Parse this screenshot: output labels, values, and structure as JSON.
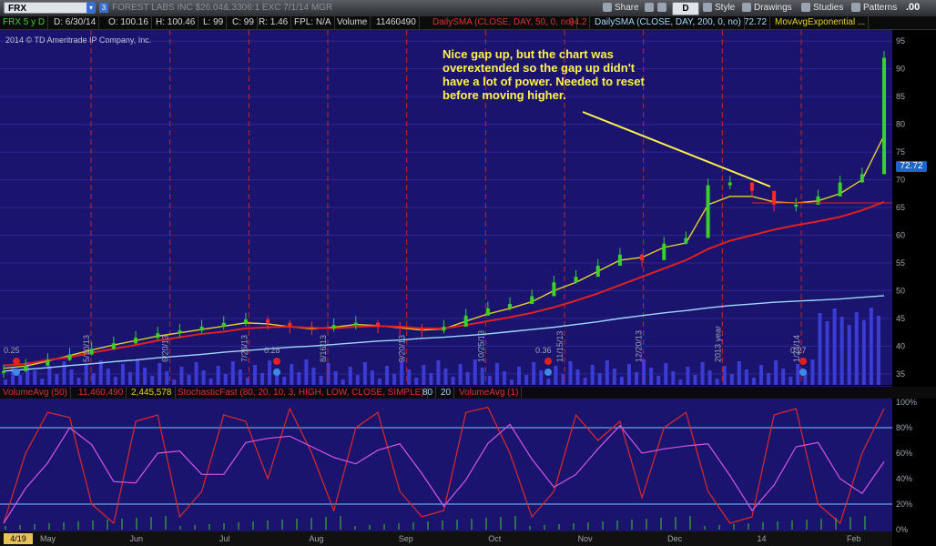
{
  "toolbar": {
    "symbol": "FRX",
    "company_line": "FOREST LABS INC $26.04&.3306:1 EXC 7/1/14 MGR",
    "share_label": "Share",
    "timeframe_label": "D",
    "style_label": "Style",
    "drawings_label": "Drawings",
    "studies_label": "Studies",
    "patterns_label": "Patterns",
    "price_display": ".00"
  },
  "studybar": {
    "period": "FRX 5 y D",
    "date": "D: 6/30/14",
    "open": "O: 100.16",
    "high": "H: 100.46",
    "low": "L: 99",
    "close": "C: 99",
    "range": "R: 1.46",
    "fpl": "FPL: N/A",
    "volume_label": "Volume",
    "volume_value": "11460490",
    "sma50_label": "DailySMA (CLOSE, DAY, 50, 0, no)",
    "sma50_value": "94.2",
    "sma200_label": "DailySMA (CLOSE, DAY, 200, 0, no)",
    "sma200_value": "72.72",
    "ema_label": "MovAvgExponential ..."
  },
  "copyright": "2014 © TD Ameritrade IP Company, Inc.",
  "annotation": "Nice gap up, but the chart was overextended so the gap up didn't have a lot of power. Needed to reset before moving higher.",
  "last_price_tag": "72.72",
  "lowerbar": {
    "volavg": "VolumeAvg (50)",
    "vol1": "11,460,490",
    "vol2": "2,445,578",
    "stoch": "StochasticFast (80, 20, 10, 3, HIGH, LOW, CLOSE, SIMPLE)",
    "ob": "80",
    "os": "20",
    "volavg2": "VolumeAvg (1)"
  },
  "start_date_box": "4/19",
  "colors": {
    "background": "#1a146e",
    "price_up": "#39d02a",
    "price_down": "#ff2a2a",
    "ema_fast": "#e6d12a",
    "sma_mid": "#e02020",
    "sma_slow": "#9fd8ff",
    "stoch_k": "#e02828",
    "stoch_d": "#d455e8",
    "annotation": "#fff34a"
  },
  "chart_data": {
    "type": "line",
    "title": "FRX 5 y D",
    "y_axis_ticks": [
      35,
      40,
      45,
      50,
      55,
      60,
      65,
      70,
      75,
      80,
      85,
      90,
      95
    ],
    "x_axis_months": [
      "May",
      "Jun",
      "Jul",
      "Aug",
      "Sep",
      "Oct",
      "Nov",
      "Dec",
      "14",
      "Feb"
    ],
    "vertical_date_labels": [
      "5/10/13",
      "6/20/13",
      "7/26/13",
      "8/16/13",
      "9/20/13",
      "10/25/13",
      "11/15/13",
      "12/20/13",
      "2013 year",
      "1/24/14"
    ],
    "dividend_labels": [
      "0.25",
      "0.28",
      "0.36",
      "0.27"
    ],
    "series": [
      {
        "name": "price",
        "values": [
          35.5,
          36.5,
          37.5,
          38.5,
          39.5,
          40.5,
          41.5,
          42.3,
          42.8,
          43.5,
          44.2,
          44.8,
          44.2,
          43.5,
          43.2,
          43.8,
          44.2,
          43.5,
          43.2,
          42.8,
          43.5,
          45.5,
          46.8,
          47.6,
          49.0,
          51.5,
          52.5,
          54.5,
          56.5,
          55.5,
          58.5,
          59.5,
          69.0,
          69.5,
          68.0,
          65.5,
          65.5,
          67.0,
          69.5,
          71.0,
          92.0
        ]
      },
      {
        "name": "EMA",
        "values": [
          36.0,
          36.4,
          37.3,
          38.3,
          39.3,
          40.2,
          41.0,
          41.8,
          42.4,
          43.0,
          43.6,
          44.2,
          44.0,
          43.5,
          43.1,
          43.4,
          43.9,
          43.7,
          43.3,
          42.9,
          43.1,
          44.5,
          45.8,
          46.8,
          48.0,
          50.0,
          51.5,
          53.5,
          55.5,
          56.0,
          57.8,
          58.6,
          65.5,
          67.0,
          67.0,
          66.0,
          65.8,
          66.2,
          67.5,
          70.0,
          78.0
        ]
      },
      {
        "name": "SMA 50",
        "values": [
          36.5,
          36.8,
          37.5,
          38.0,
          38.8,
          39.5,
          40.2,
          41.0,
          41.6,
          42.2,
          42.6,
          43.2,
          43.4,
          43.5,
          43.3,
          43.2,
          43.5,
          43.6,
          43.5,
          43.2,
          43.2,
          43.8,
          44.5,
          45.2,
          46.0,
          47.0,
          48.2,
          49.5,
          51.0,
          52.5,
          54.0,
          55.5,
          57.5,
          59.0,
          60.0,
          61.0,
          61.8,
          62.5,
          63.3,
          64.5,
          66.0
        ]
      },
      {
        "name": "SMA 200",
        "values": [
          35.5,
          35.8,
          36.1,
          36.5,
          36.8,
          37.2,
          37.5,
          37.9,
          38.2,
          38.5,
          38.9,
          39.2,
          39.5,
          39.8,
          40.0,
          40.3,
          40.6,
          40.9,
          41.1,
          41.4,
          41.6,
          41.9,
          42.2,
          42.6,
          43.0,
          43.4,
          43.9,
          44.4,
          45.0,
          45.5,
          46.0,
          46.4,
          46.9,
          47.3,
          47.6,
          47.9,
          48.1,
          48.3,
          48.5,
          48.8,
          49.1
        ]
      }
    ],
    "lower_study": {
      "type": "line",
      "ylim": [
        0,
        100
      ],
      "y_ticks": [
        "100%",
        "80%",
        "60%",
        "40%",
        "20%",
        "0%"
      ],
      "levels": [
        80,
        20
      ],
      "k_values": [
        5,
        60,
        92,
        88,
        20,
        5,
        85,
        90,
        10,
        30,
        90,
        85,
        40,
        95,
        60,
        15,
        80,
        92,
        30,
        10,
        15,
        92,
        96,
        60,
        10,
        30,
        90,
        70,
        85,
        25,
        80,
        92,
        30,
        5,
        10,
        90,
        95,
        20,
        5,
        60,
        95
      ]
    },
    "ylim": [
      33,
      97
    ]
  }
}
